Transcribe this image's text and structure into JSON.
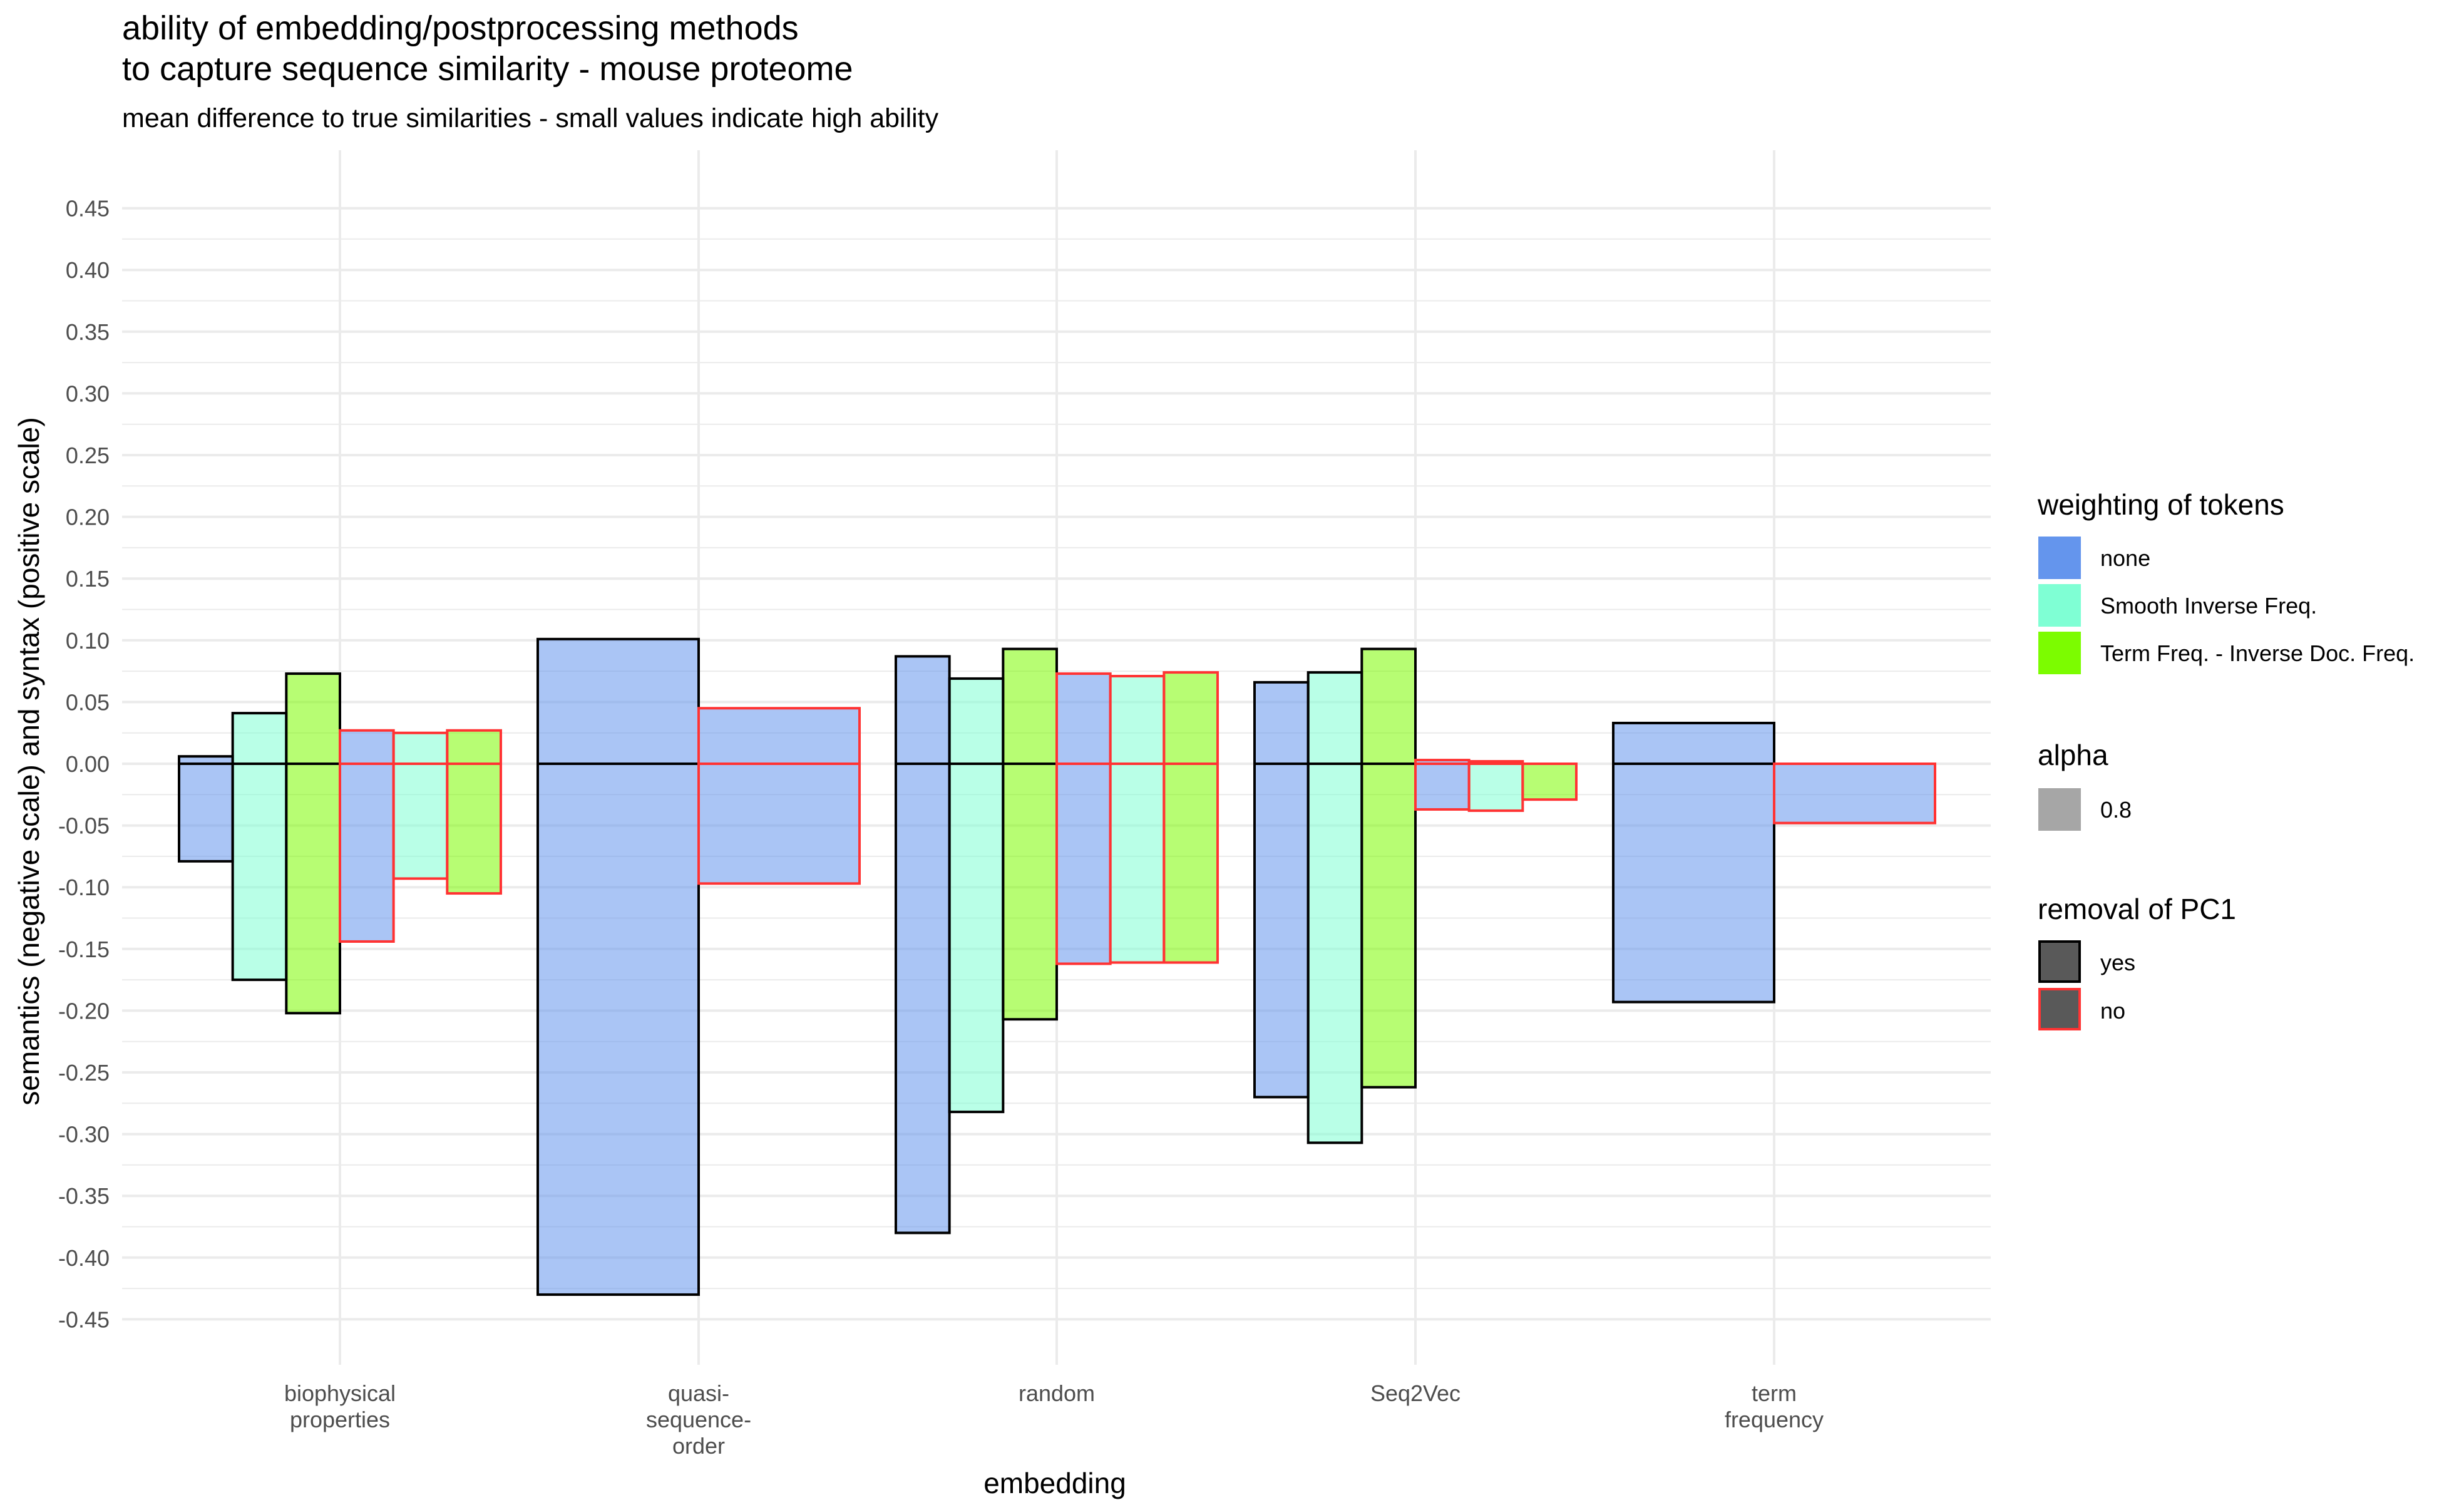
{
  "chart_data": {
    "type": "bar",
    "title_lines": [
      "ability of embedding/postprocessing methods",
      "to capture sequence similarity - mouse proteome"
    ],
    "subtitle": "mean difference to true similarities - small values indicate high ability",
    "xlabel": "embedding",
    "ylabel": "semantics (negative scale) and syntax (positive scale)",
    "ylim": [
      -0.49,
      0.49
    ],
    "y_ticks": [
      0.45,
      0.4,
      0.35,
      0.3,
      0.25,
      0.2,
      0.15,
      0.1,
      0.05,
      0.0,
      -0.05,
      -0.1,
      -0.15,
      -0.2,
      -0.25,
      -0.3,
      -0.35,
      -0.4,
      -0.45
    ],
    "y_tick_labels": [
      "0.45",
      "0.40",
      "0.35",
      "0.30",
      "0.25",
      "0.20",
      "0.15",
      "0.10",
      "0.05",
      "0.00",
      "-0.05",
      "-0.10",
      "-0.15",
      "-0.20",
      "-0.25",
      "-0.30",
      "-0.35",
      "-0.40",
      "-0.45"
    ],
    "grid": true,
    "categories": [
      {
        "key": "biophysical",
        "label_lines": [
          "biophysical",
          "properties"
        ]
      },
      {
        "key": "quasi",
        "label_lines": [
          "quasi-",
          "sequence-",
          "order"
        ]
      },
      {
        "key": "random",
        "label_lines": [
          "random"
        ]
      },
      {
        "key": "seq2vec",
        "label_lines": [
          "Seq2Vec"
        ]
      },
      {
        "key": "term",
        "label_lines": [
          "term",
          "frequency"
        ]
      }
    ],
    "colors": {
      "none": "#6495ED",
      "sif": "#7FFFD4",
      "tfidf": "#7CFC00",
      "outline_yes": "#000000",
      "outline_no": "#FF3333",
      "grid": "#ebebeb"
    },
    "bars": [
      {
        "category": "biophysical",
        "weighting": "none",
        "pc1_removed": "yes",
        "ymin": -0.079,
        "ymax": 0.006
      },
      {
        "category": "biophysical",
        "weighting": "sif",
        "pc1_removed": "yes",
        "ymin": -0.175,
        "ymax": 0.041
      },
      {
        "category": "biophysical",
        "weighting": "tfidf",
        "pc1_removed": "yes",
        "ymin": -0.202,
        "ymax": 0.073
      },
      {
        "category": "biophysical",
        "weighting": "none",
        "pc1_removed": "no",
        "ymin": -0.144,
        "ymax": 0.027
      },
      {
        "category": "biophysical",
        "weighting": "sif",
        "pc1_removed": "no",
        "ymin": -0.093,
        "ymax": 0.025
      },
      {
        "category": "biophysical",
        "weighting": "tfidf",
        "pc1_removed": "no",
        "ymin": -0.105,
        "ymax": 0.027
      },
      {
        "category": "quasi",
        "weighting": "none",
        "pc1_removed": "yes",
        "ymin": -0.43,
        "ymax": 0.101
      },
      {
        "category": "quasi",
        "weighting": "none",
        "pc1_removed": "no",
        "ymin": -0.097,
        "ymax": 0.045
      },
      {
        "category": "random",
        "weighting": "none",
        "pc1_removed": "yes",
        "ymin": -0.38,
        "ymax": 0.087
      },
      {
        "category": "random",
        "weighting": "sif",
        "pc1_removed": "yes",
        "ymin": -0.282,
        "ymax": 0.069
      },
      {
        "category": "random",
        "weighting": "tfidf",
        "pc1_removed": "yes",
        "ymin": -0.207,
        "ymax": 0.093
      },
      {
        "category": "random",
        "weighting": "none",
        "pc1_removed": "no",
        "ymin": -0.162,
        "ymax": 0.073
      },
      {
        "category": "random",
        "weighting": "sif",
        "pc1_removed": "no",
        "ymin": -0.161,
        "ymax": 0.071
      },
      {
        "category": "random",
        "weighting": "tfidf",
        "pc1_removed": "no",
        "ymin": -0.161,
        "ymax": 0.074
      },
      {
        "category": "seq2vec",
        "weighting": "none",
        "pc1_removed": "yes",
        "ymin": -0.27,
        "ymax": 0.066
      },
      {
        "category": "seq2vec",
        "weighting": "sif",
        "pc1_removed": "yes",
        "ymin": -0.307,
        "ymax": 0.074
      },
      {
        "category": "seq2vec",
        "weighting": "tfidf",
        "pc1_removed": "yes",
        "ymin": -0.262,
        "ymax": 0.093
      },
      {
        "category": "seq2vec",
        "weighting": "none",
        "pc1_removed": "no",
        "ymin": -0.037,
        "ymax": 0.003
      },
      {
        "category": "seq2vec",
        "weighting": "sif",
        "pc1_removed": "no",
        "ymin": -0.038,
        "ymax": 0.002
      },
      {
        "category": "seq2vec",
        "weighting": "tfidf",
        "pc1_removed": "no",
        "ymin": -0.029,
        "ymax": 0.0
      },
      {
        "category": "term",
        "weighting": "none",
        "pc1_removed": "yes",
        "ymin": -0.193,
        "ymax": 0.033
      },
      {
        "category": "term",
        "weighting": "none",
        "pc1_removed": "no",
        "ymin": -0.048,
        "ymax": 0.0
      }
    ],
    "legend": {
      "placement": "right",
      "weighting": {
        "title": "weighting of tokens",
        "items": [
          {
            "key": "none",
            "label": "none"
          },
          {
            "key": "sif",
            "label": "Smooth Inverse Freq."
          },
          {
            "key": "tfidf",
            "label": "Term Freq. - Inverse Doc. Freq."
          }
        ]
      },
      "alpha": {
        "title": "alpha",
        "items": [
          {
            "key": "alpha",
            "label": "0.8",
            "value": 0.8
          }
        ]
      },
      "pc1": {
        "title": "removal of PC1",
        "items": [
          {
            "key": "yes",
            "label": "yes"
          },
          {
            "key": "no",
            "label": "no"
          }
        ]
      }
    }
  }
}
